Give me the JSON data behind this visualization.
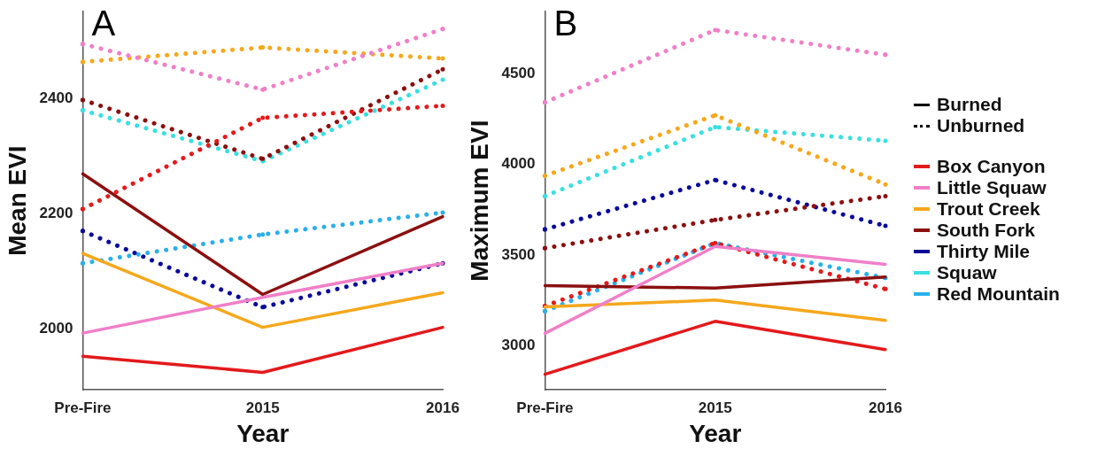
{
  "chart_data": [
    {
      "type": "line",
      "title": "A",
      "xlabel": "Year",
      "ylabel": "Mean EVI",
      "categories": [
        "Pre-Fire",
        "2015",
        "2016"
      ],
      "ylim": [
        1895,
        2550
      ],
      "yticks": [
        2000,
        2200,
        2400
      ],
      "grid": false,
      "legend": false,
      "marker": "none",
      "series": [
        {
          "color": "#e31a1c",
          "line_style": "solid",
          "values": [
            1953,
            1925,
            2003
          ]
        },
        {
          "color": "#f07fc8",
          "line_style": "solid",
          "values": [
            1993,
            2055,
            2114
          ]
        },
        {
          "color": "#f5a81c",
          "line_style": "solid",
          "values": [
            2131,
            2003,
            2063
          ]
        },
        {
          "color": "#8b1010",
          "line_style": "solid",
          "values": [
            2269,
            2060,
            2195
          ]
        },
        {
          "color": "#e31a1c",
          "line_style": "dotted",
          "values": [
            2208,
            2366,
            2387
          ]
        },
        {
          "color": "#f07fc8",
          "line_style": "dotted",
          "values": [
            2494,
            2415,
            2520
          ]
        },
        {
          "color": "#f5a81c",
          "line_style": "dotted",
          "values": [
            2463,
            2488,
            2469
          ]
        },
        {
          "color": "#8b1010",
          "line_style": "dotted",
          "values": [
            2397,
            2295,
            2450
          ]
        },
        {
          "color": "#0a0a9a",
          "line_style": "dotted",
          "values": [
            2170,
            2038,
            2114
          ]
        },
        {
          "color": "#38e0e0",
          "line_style": "dotted",
          "values": [
            2379,
            2291,
            2432
          ]
        },
        {
          "color": "#2ab0e8",
          "line_style": "dotted",
          "values": [
            2114,
            2164,
            2202
          ]
        }
      ]
    },
    {
      "type": "line",
      "title": "B",
      "xlabel": "Year",
      "ylabel": "Maximum EVI",
      "categories": [
        "Pre-Fire",
        "2015",
        "2016"
      ],
      "ylim": [
        2760,
        4840
      ],
      "yticks": [
        3000,
        3500,
        4000,
        4500
      ],
      "grid": false,
      "legend": "right",
      "marker": "none",
      "annotations": [
        "Burned",
        "Unburned"
      ],
      "series": [
        {
          "name": "Box Canyon",
          "color": "#e31a1c",
          "line_style": "solid",
          "values": [
            2845,
            3136,
            2981
          ]
        },
        {
          "name": "Little Squaw",
          "color": "#f07fc8",
          "line_style": "solid",
          "values": [
            3070,
            3548,
            3450
          ]
        },
        {
          "name": "Trout Creek",
          "color": "#f5a81c",
          "line_style": "solid",
          "values": [
            3216,
            3253,
            3141
          ]
        },
        {
          "name": "South Fork",
          "color": "#8b1010",
          "line_style": "solid",
          "values": [
            3333,
            3319,
            3380
          ]
        },
        {
          "color": "#e31a1c",
          "line_style": "dotted",
          "values": [
            3220,
            3567,
            3314
          ]
        },
        {
          "color": "#f07fc8",
          "line_style": "dotted",
          "values": [
            4341,
            4739,
            4603
          ]
        },
        {
          "color": "#f5a81c",
          "line_style": "dotted",
          "values": [
            3937,
            4270,
            3890
          ]
        },
        {
          "color": "#8b1010",
          "line_style": "dotted",
          "values": [
            3539,
            3694,
            3825
          ]
        },
        {
          "name": "Thirty Mile",
          "color": "#0a0a9a",
          "line_style": "dotted",
          "values": [
            3642,
            3914,
            3661
          ]
        },
        {
          "name": "Squaw",
          "color": "#38e0e0",
          "line_style": "dotted",
          "values": [
            3825,
            4205,
            4130
          ]
        },
        {
          "name": "Red Mountain",
          "color": "#2ab0e8",
          "line_style": "dotted",
          "values": [
            3192,
            3567,
            3375
          ]
        }
      ]
    }
  ]
}
